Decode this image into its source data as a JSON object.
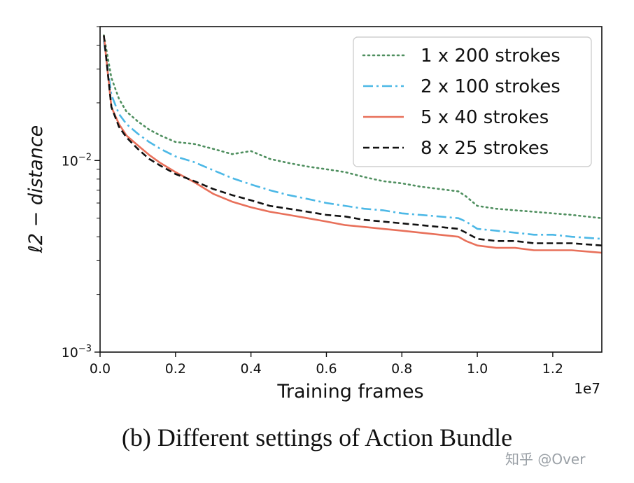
{
  "chart_data": {
    "type": "line",
    "yscale": "log",
    "xlim": [
      0,
      13300000
    ],
    "ylim": [
      0.001,
      0.05
    ],
    "xlabel": "Training frames",
    "x_offset_label": "1e7",
    "ylabel": "ℓ2 − distance",
    "x_ticks": [
      0,
      2000000,
      4000000,
      6000000,
      8000000,
      10000000,
      12000000
    ],
    "x_tick_labels": [
      "0.0",
      "0.2",
      "0.4",
      "0.6",
      "0.8",
      "1.0",
      "1.2"
    ],
    "y_ticks": [
      0.001,
      0.01
    ],
    "y_tick_labels": [
      {
        "base": "10",
        "exp": "−3"
      },
      {
        "base": "10",
        "exp": "−2"
      }
    ],
    "legend_position": "top-right",
    "series": [
      {
        "name": "1 x 200 strokes",
        "color": "#4f8f5f",
        "style": "dotted",
        "x": [
          100000,
          300000,
          500000,
          700000,
          1000000,
          1300000,
          1600000,
          2000000,
          2500000,
          3000000,
          3500000,
          4000000,
          4500000,
          5000000,
          5500000,
          6000000,
          6500000,
          7000000,
          7500000,
          8000000,
          8500000,
          9000000,
          9500000,
          9700000,
          10000000,
          10500000,
          11000000,
          11500000,
          12000000,
          12500000,
          13300000
        ],
        "values": [
          0.045,
          0.027,
          0.021,
          0.018,
          0.016,
          0.0145,
          0.0135,
          0.0125,
          0.0122,
          0.0115,
          0.0108,
          0.0112,
          0.0102,
          0.0097,
          0.0093,
          0.009,
          0.0087,
          0.0082,
          0.0078,
          0.0076,
          0.0073,
          0.0071,
          0.0069,
          0.0065,
          0.0058,
          0.0056,
          0.0055,
          0.0054,
          0.0053,
          0.0052,
          0.005
        ]
      },
      {
        "name": "2 x 100 strokes",
        "color": "#4cb8e6",
        "style": "dashdot",
        "x": [
          100000,
          300000,
          500000,
          700000,
          1000000,
          1300000,
          1600000,
          2000000,
          2500000,
          3000000,
          3500000,
          4000000,
          4500000,
          5000000,
          5500000,
          6000000,
          6500000,
          7000000,
          7500000,
          8000000,
          8500000,
          9000000,
          9500000,
          9700000,
          10000000,
          10500000,
          11000000,
          11500000,
          12000000,
          12500000,
          13300000
        ],
        "values": [
          0.042,
          0.022,
          0.0175,
          0.0155,
          0.0138,
          0.0125,
          0.0115,
          0.0105,
          0.0098,
          0.0089,
          0.0081,
          0.0075,
          0.007,
          0.0066,
          0.0063,
          0.006,
          0.0058,
          0.0056,
          0.0055,
          0.0053,
          0.0052,
          0.0051,
          0.005,
          0.0048,
          0.0044,
          0.0043,
          0.0042,
          0.0041,
          0.0041,
          0.004,
          0.0039
        ]
      },
      {
        "name": "5 x 40 strokes",
        "color": "#e8705a",
        "style": "solid",
        "x": [
          100000,
          300000,
          500000,
          700000,
          1000000,
          1300000,
          1600000,
          2000000,
          2500000,
          3000000,
          3500000,
          4000000,
          4500000,
          5000000,
          5500000,
          6000000,
          6500000,
          7000000,
          7500000,
          8000000,
          8500000,
          9000000,
          9500000,
          9700000,
          10000000,
          10500000,
          11000000,
          11500000,
          12000000,
          12500000,
          13300000
        ],
        "values": [
          0.045,
          0.019,
          0.0155,
          0.0135,
          0.012,
          0.0107,
          0.0097,
          0.0087,
          0.0077,
          0.0067,
          0.0061,
          0.0057,
          0.0054,
          0.0052,
          0.005,
          0.0048,
          0.0046,
          0.0045,
          0.0044,
          0.0043,
          0.0042,
          0.0041,
          0.004,
          0.0038,
          0.0036,
          0.0035,
          0.0035,
          0.0034,
          0.0034,
          0.0034,
          0.0033
        ]
      },
      {
        "name": "8 x 25 strokes",
        "color": "#111111",
        "style": "dashed",
        "x": [
          100000,
          300000,
          500000,
          700000,
          1000000,
          1300000,
          1600000,
          2000000,
          2500000,
          3000000,
          3500000,
          4000000,
          4500000,
          5000000,
          5500000,
          6000000,
          6500000,
          7000000,
          7500000,
          8000000,
          8500000,
          9000000,
          9500000,
          9700000,
          10000000,
          10500000,
          11000000,
          11500000,
          12000000,
          12500000,
          13300000
        ],
        "values": [
          0.045,
          0.019,
          0.015,
          0.0132,
          0.0115,
          0.0102,
          0.0094,
          0.0085,
          0.0078,
          0.0071,
          0.0066,
          0.0062,
          0.0058,
          0.0056,
          0.0054,
          0.0052,
          0.0051,
          0.0049,
          0.0048,
          0.0047,
          0.0046,
          0.0045,
          0.0044,
          0.0042,
          0.0039,
          0.0038,
          0.0038,
          0.0037,
          0.0037,
          0.0037,
          0.0036
        ]
      }
    ]
  },
  "caption": "(b) Different settings of Action Bundle",
  "watermark": "知乎 @Over"
}
